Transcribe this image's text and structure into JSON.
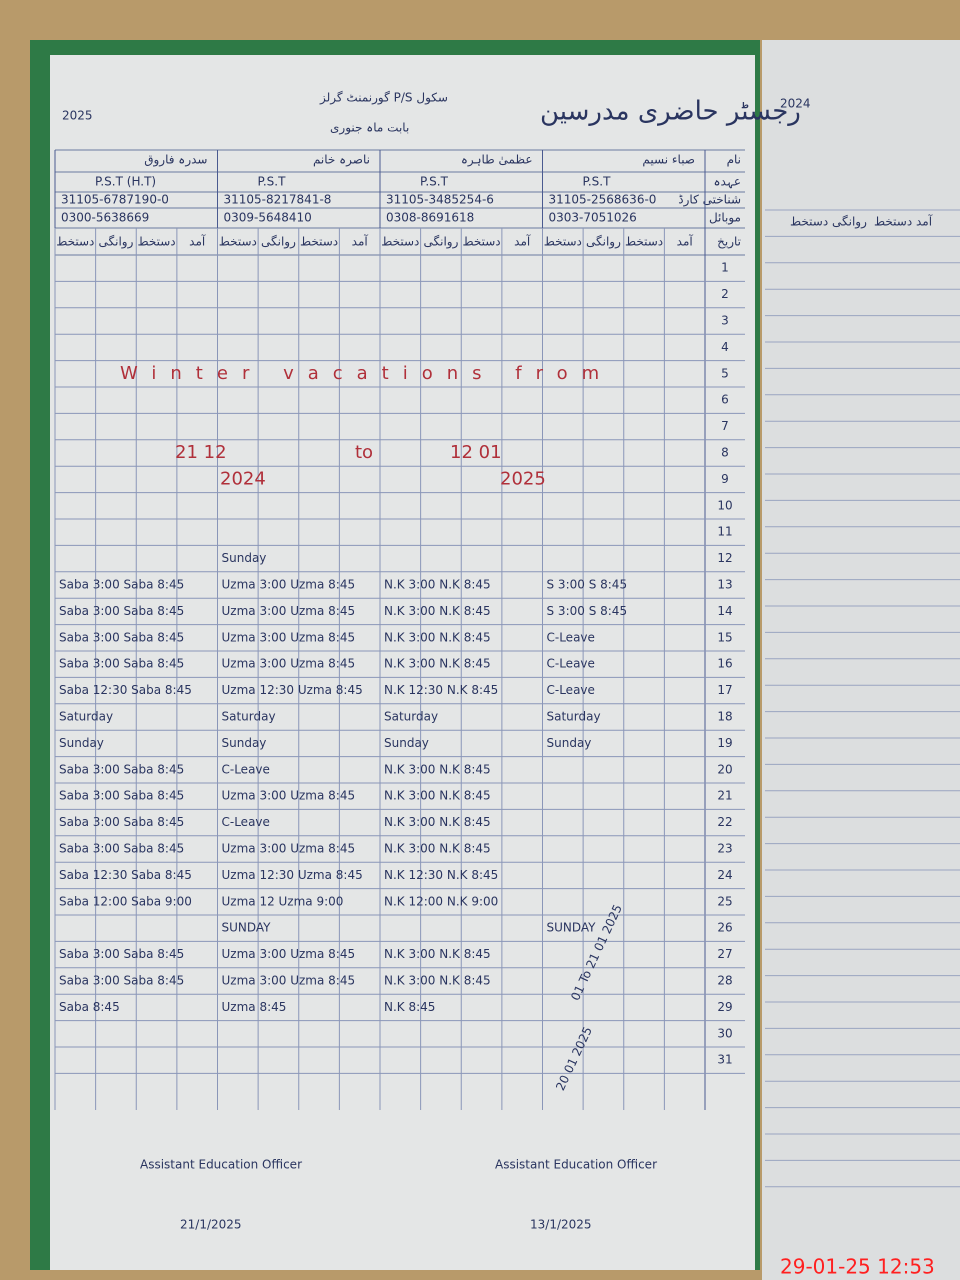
{
  "header": {
    "title": "رجسٹر حاضری مدرسین",
    "school": "گورنمنٹ گرلز P/S سکول",
    "month": "بابت ماہ جنوری",
    "year_left": "2025",
    "year_right": "2024"
  },
  "row_labels": [
    "نام",
    "عہدہ",
    "شناختی کارڈ",
    "موبائل",
    "تاریخ"
  ],
  "teachers": [
    {
      "name": "صباء نسیم",
      "post": "P.S.T",
      "cnic": "31105-2568636-0",
      "phone": "0303-7051026"
    },
    {
      "name": "عظمیٰ طاہرہ",
      "post": "P.S.T",
      "cnic": "31105-3485254-6",
      "phone": "0308-8691618"
    },
    {
      "name": "ناصرہ خانم",
      "post": "P.S.T",
      "cnic": "31105-8217841-8",
      "phone": "0309-5648410"
    },
    {
      "name": "سدرہ فاروق",
      "post": "P.S.T (H.T)",
      "cnic": "31105-6787190-0",
      "phone": "0300-5638669"
    }
  ],
  "subheaders": [
    "دستخط",
    "روانگی",
    "دستخط",
    "آمد"
  ],
  "days": [
    1,
    2,
    3,
    4,
    5,
    6,
    7,
    8,
    9,
    10,
    11,
    12,
    13,
    14,
    15,
    16,
    17,
    18,
    19,
    20,
    21,
    22,
    23,
    24,
    25,
    26,
    27,
    28,
    29,
    30,
    31
  ],
  "notes": {
    "vacation": "Winter vacations from",
    "from_date": "21 12",
    "from_year": "2024",
    "to": "to",
    "to_date": "12 01",
    "to_year": "2025",
    "leave": "01 To 21 01 2025",
    "leave2": "20 01 2025"
  },
  "entries": [
    null,
    null,
    null,
    null,
    null,
    null,
    null,
    null,
    null,
    null,
    null,
    [
      null,
      "Sunday",
      null,
      null
    ],
    [
      "Saba 3:00 Saba 8:45",
      "Uzma 3:00 Uzma 8:45",
      "N.K 3:00 N.K 8:45",
      "S 3:00 S 8:45"
    ],
    [
      "Saba 3:00 Saba 8:45",
      "Uzma 3:00 Uzma 8:45",
      "N.K 3:00 N.K 8:45",
      "S 3:00 S 8:45"
    ],
    [
      "Saba 3:00 Saba 8:45",
      "Uzma 3:00 Uzma 8:45",
      "N.K 3:00 N.K 8:45",
      "C-Leave"
    ],
    [
      "Saba 3:00 Saba 8:45",
      "Uzma 3:00 Uzma 8:45",
      "N.K 3:00 N.K 8:45",
      "C-Leave"
    ],
    [
      "Saba 12:30 Saba 8:45",
      "Uzma 12:30 Uzma 8:45",
      "N.K 12:30 N.K 8:45",
      "C-Leave"
    ],
    [
      "Saturday",
      "Saturday",
      "Saturday",
      "Saturday"
    ],
    [
      "Sunday",
      "Sunday",
      "Sunday",
      "Sunday"
    ],
    [
      "Saba 3:00 Saba 8:45",
      "C-Leave",
      "N.K 3:00 N.K 8:45",
      null
    ],
    [
      "Saba 3:00 Saba 8:45",
      "Uzma 3:00 Uzma 8:45",
      "N.K 3:00 N.K 8:45",
      null
    ],
    [
      "Saba 3:00 Saba 8:45",
      "C-Leave",
      "N.K 3:00 N.K 8:45",
      null
    ],
    [
      "Saba 3:00 Saba 8:45",
      "Uzma 3:00 Uzma 8:45",
      "N.K 3:00 N.K 8:45",
      null
    ],
    [
      "Saba 12:30 Saba 8:45",
      "Uzma 12:30 Uzma 8:45",
      "N.K 12:30 N.K 8:45",
      null
    ],
    [
      "Saba 12:00 Saba 9:00",
      "Uzma 12 Uzma 9:00",
      "N.K 12:00 N.K 9:00",
      null
    ],
    [
      null,
      "SUNDAY",
      null,
      "SUNDAY"
    ],
    [
      "Saba 3:00 Saba 8:45",
      "Uzma 3:00 Uzma 8:45",
      "N.K 3:00 N.K 8:45",
      null
    ],
    [
      "Saba 3:00 Saba 8:45",
      "Uzma 3:00 Uzma 8:45",
      "N.K 3:00 N.K 8:45",
      null
    ],
    [
      "Saba 8:45",
      "Uzma 8:45",
      "N.K 8:45",
      null
    ],
    null,
    null
  ],
  "footer": {
    "stamp_left": "Assistant Education Officer",
    "date_left": "21/1/2025",
    "stamp_right": "Assistant Education Officer",
    "date_right": "13/1/2025"
  },
  "timestamp": "29-01-25 12:53"
}
